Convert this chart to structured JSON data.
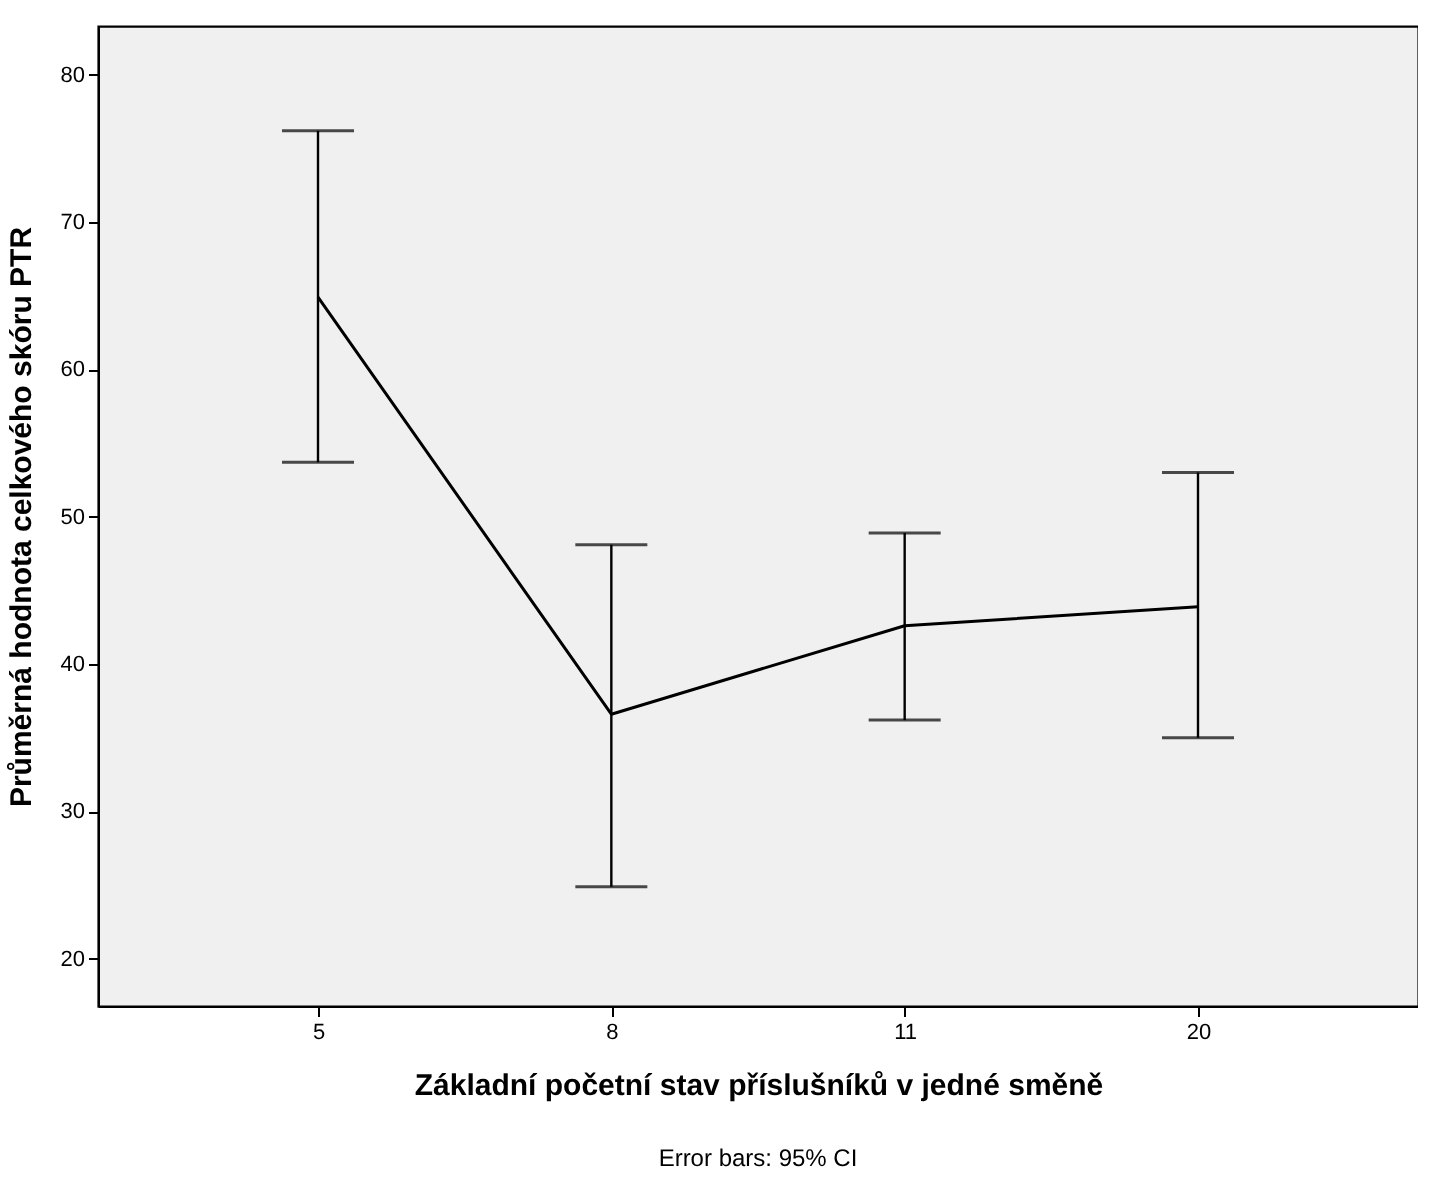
{
  "chart_data": {
    "type": "line",
    "xlabel": "Základní početní stav příslušníků v jedné směně",
    "ylabel": "Průměrná hodnota celkového skóru PTR",
    "annotations": [
      "Error bars: 95% CI"
    ],
    "categories": [
      "5",
      "8",
      "11",
      "20"
    ],
    "values": [
      64.9,
      36.6,
      42.6,
      43.9
    ],
    "errors": [
      [
        53.7,
        76.2
      ],
      [
        24.9,
        48.1
      ],
      [
        36.2,
        48.9
      ],
      [
        35.0,
        53.0
      ]
    ],
    "color": "#000000",
    "ylim": [
      16.8,
      83.3
    ],
    "yticks": [
      20,
      30,
      40,
      50,
      60,
      70,
      80
    ],
    "grid": false,
    "marker": "none",
    "line_style": "solid"
  }
}
